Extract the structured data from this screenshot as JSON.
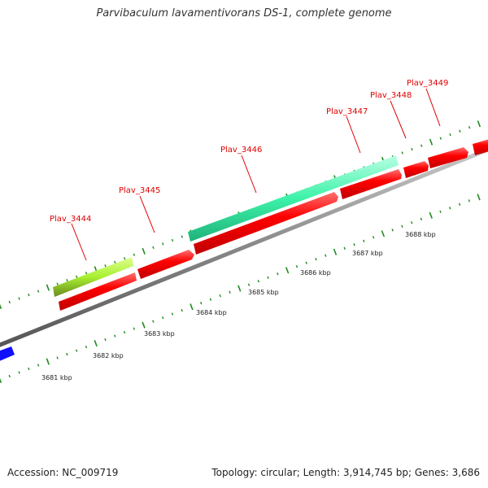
{
  "title": "Parvibaculum lavamentivorans DS-1, complete genome",
  "footer": {
    "accession": "Accession: NC_009719",
    "summary": "Topology: circular; Length: 3,914,745 bp; Genes: 3,686"
  },
  "colors": {
    "gene_red": "#ff0000",
    "gene_cyan": "#3cf2a8",
    "gene_yellowgreen": "#a8f030",
    "gene_blue": "#1010ff",
    "backbone": "#888888",
    "tick_green": "#1f8a1f",
    "label_red": "#e00000"
  },
  "genes": [
    {
      "name": "Plav_3444"
    },
    {
      "name": "Plav_3445"
    },
    {
      "name": "Plav_3446"
    },
    {
      "name": "Plav_3447"
    },
    {
      "name": "Plav_3448"
    },
    {
      "name": "Plav_3449"
    }
  ],
  "scale": {
    "kbp_labels": [
      "3681 kbp",
      "3682 kbp",
      "3683 kbp",
      "3684 kbp",
      "3685 kbp",
      "3686 kbp",
      "3687 kbp",
      "3688 kbp"
    ]
  }
}
